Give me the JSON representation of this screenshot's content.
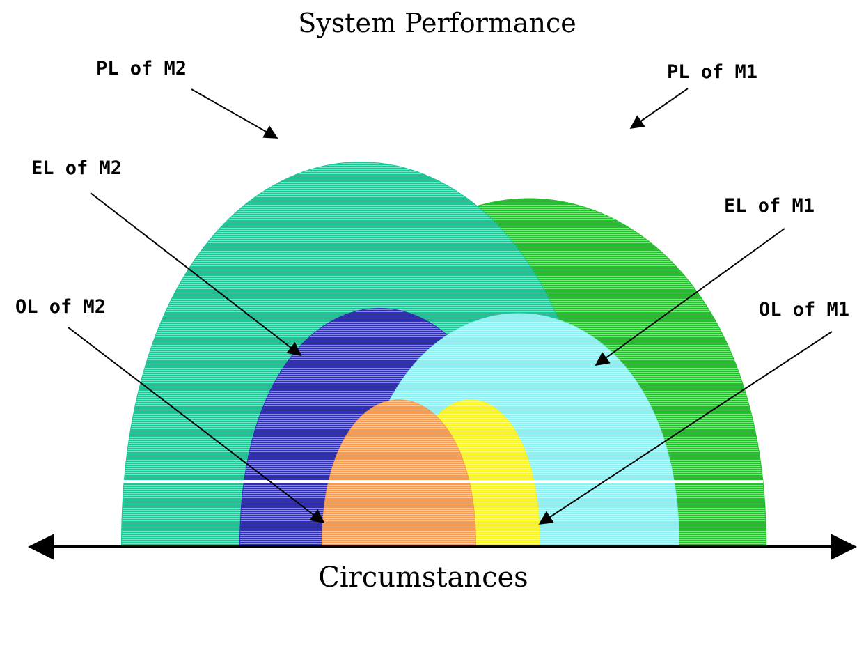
{
  "diagram": {
    "title": "System Performance",
    "axis_label": "Circumstances",
    "labels": {
      "pl_m2": "PL of M2",
      "pl_m1": "PL of M1",
      "el_m2": "EL of M2",
      "el_m1": "EL of M1",
      "ol_m2": "OL of M2",
      "ol_m1": "OL of M1"
    },
    "colors": {
      "pl_m1": "#21c229",
      "pl_m2": "#18c795",
      "el_m2": "#2e2ebb",
      "el_m1": "#8af2f2",
      "ol_m2": "#fa9a4c",
      "ol_m1": "#f9f51d",
      "axis": "#000000"
    },
    "arrow_icon": "double-headed-arrow-icon"
  }
}
